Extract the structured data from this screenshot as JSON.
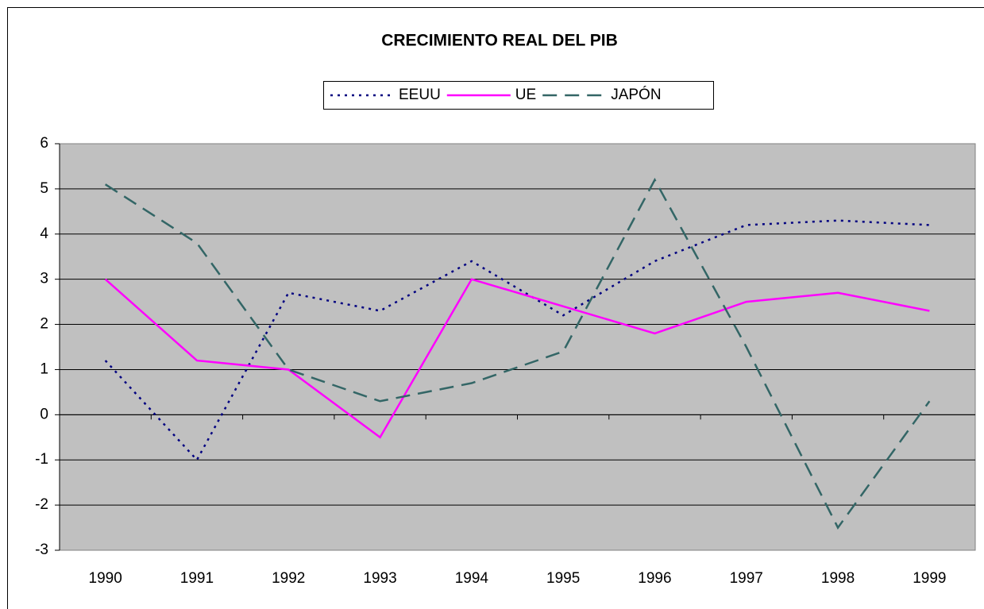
{
  "chart_data": {
    "type": "line",
    "title": "CRECIMIENTO REAL DEL PIB",
    "categories": [
      "1990",
      "1991",
      "1992",
      "1993",
      "1994",
      "1995",
      "1996",
      "1997",
      "1998",
      "1999"
    ],
    "series": [
      {
        "name": "EEUU",
        "color": "#000080",
        "dash": "dotted",
        "values": [
          1.2,
          -1.0,
          2.7,
          2.3,
          3.4,
          2.2,
          3.4,
          4.2,
          4.3,
          4.2
        ]
      },
      {
        "name": "UE",
        "color": "#ff00ff",
        "dash": "solid",
        "values": [
          3.0,
          1.2,
          1.0,
          -0.5,
          3.0,
          2.4,
          1.8,
          2.5,
          2.7,
          2.3
        ]
      },
      {
        "name": "JAPÓN",
        "color": "#336666",
        "dash": "dashed",
        "values": [
          5.1,
          3.8,
          1.0,
          0.3,
          0.7,
          1.4,
          5.2,
          1.5,
          -2.5,
          0.3
        ]
      }
    ],
    "ylim": [
      -3,
      6
    ],
    "yticks": [
      -3,
      -2,
      -1,
      0,
      1,
      2,
      3,
      4,
      5,
      6
    ],
    "grid": true,
    "legend": "top"
  }
}
